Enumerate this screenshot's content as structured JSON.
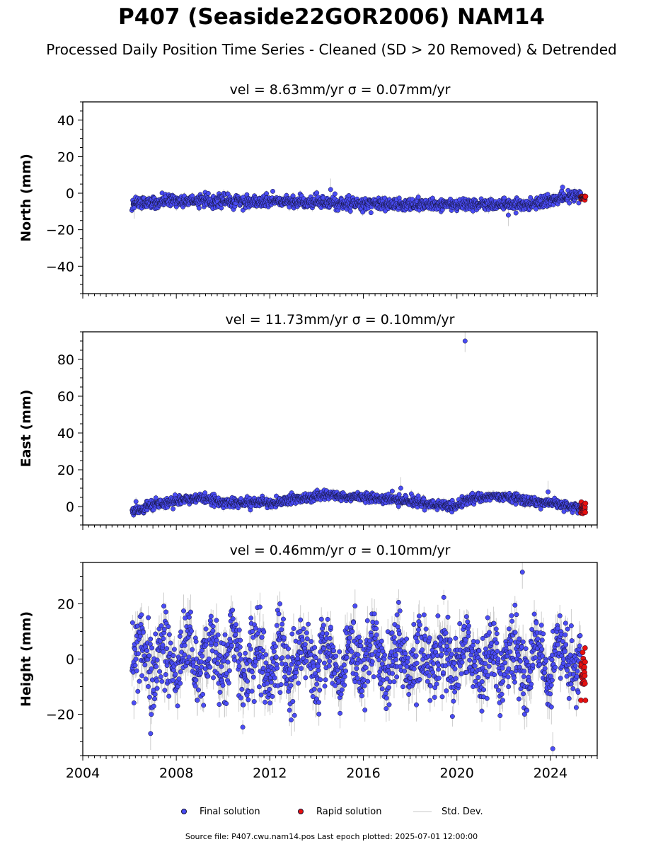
{
  "title": "P407 (Seaside22GOR2006) NAM14",
  "subtitle": "Processed Daily Position Time Series - Cleaned (SD > 20 Removed) & Detrended",
  "legend": {
    "final": "Final solution",
    "rapid": "Rapid solution",
    "std": "Std. Dev."
  },
  "footer": "Source file: P407.cwu.nam14.pos  Last epoch plotted: 2025-07-01 12:00:00",
  "colors": {
    "final": "#4a4cf5",
    "rapid": "#e8100e",
    "std": "#bdbdbd",
    "edge": "#111133"
  },
  "chart_data": [
    {
      "type": "scatter",
      "title": "vel = 8.63mm/yr   σ = 0.07mm/yr",
      "ylabel": "North (mm)",
      "xlim": [
        2004,
        2026
      ],
      "ylim": [
        -55,
        50
      ],
      "yticks": [
        -40,
        -20,
        0,
        20,
        40
      ],
      "series": [
        {
          "name": "Final solution",
          "x_range": [
            2006.1,
            2025.3
          ],
          "trend": [
            [
              2006.1,
              -5
            ],
            [
              2009,
              -4
            ],
            [
              2014.5,
              -5
            ],
            [
              2016,
              -6
            ],
            [
              2021,
              -6
            ],
            [
              2023,
              -6.5
            ],
            [
              2024.5,
              -3
            ],
            [
              2025.3,
              -1
            ]
          ],
          "scatter_sd": 1.6
        },
        {
          "name": "Rapid solution",
          "x_range": [
            2025.3,
            2025.5
          ],
          "trend": [
            [
              2025.3,
              -2.5
            ],
            [
              2025.5,
              -2.5
            ]
          ],
          "scatter_sd": 0.6
        }
      ],
      "outliers": [
        {
          "x": 2022.2,
          "y": -12
        },
        {
          "x": 2014.6,
          "y": 2
        },
        {
          "x": 2006.2,
          "y": -8
        }
      ]
    },
    {
      "type": "scatter",
      "title": "vel = 11.73mm/yr   σ = 0.10mm/yr",
      "ylabel": "East (mm)",
      "xlim": [
        2004,
        2026
      ],
      "ylim": [
        -10,
        95
      ],
      "yticks": [
        0,
        20,
        40,
        60,
        80
      ],
      "series": [
        {
          "name": "Final solution",
          "x_range": [
            2006.1,
            2025.3
          ],
          "trend": [
            [
              2006.1,
              -3
            ],
            [
              2007,
              1
            ],
            [
              2009,
              5
            ],
            [
              2010,
              2
            ],
            [
              2012,
              2
            ],
            [
              2013.5,
              5
            ],
            [
              2014.5,
              6
            ],
            [
              2016,
              5
            ],
            [
              2017.5,
              4
            ],
            [
              2019,
              1
            ],
            [
              2020,
              0
            ],
            [
              2020.5,
              4
            ],
            [
              2022,
              6
            ],
            [
              2023,
              3
            ],
            [
              2024,
              2
            ],
            [
              2025.3,
              -1
            ]
          ],
          "scatter_sd": 1.3
        },
        {
          "name": "Rapid solution",
          "x_range": [
            2025.3,
            2025.5
          ],
          "trend": [
            [
              2025.3,
              -1
            ],
            [
              2025.5,
              -1
            ]
          ],
          "scatter_sd": 1.5
        }
      ],
      "outliers": [
        {
          "x": 2020.35,
          "y": 90
        },
        {
          "x": 2023.9,
          "y": 8
        },
        {
          "x": 2017.6,
          "y": 10
        }
      ]
    },
    {
      "type": "scatter",
      "title": "vel = 0.46mm/yr   σ = 0.10mm/yr",
      "ylabel": "Height (mm)",
      "xlim": [
        2004,
        2026
      ],
      "ylim": [
        -35,
        35
      ],
      "yticks": [
        -20,
        0,
        20
      ],
      "xticks": [
        2004,
        2008,
        2012,
        2016,
        2020,
        2024
      ],
      "series": [
        {
          "name": "Final solution",
          "x_range": [
            2006.1,
            2025.3
          ],
          "trend": [
            [
              2006.1,
              0
            ],
            [
              2025.3,
              0
            ]
          ],
          "seasonal_amplitude": 6,
          "scatter_sd": 6.5
        },
        {
          "name": "Rapid solution",
          "x_range": [
            2025.3,
            2025.5
          ],
          "trend": [
            [
              2025.3,
              -5
            ],
            [
              2025.5,
              -5
            ]
          ],
          "scatter_sd": 5
        }
      ],
      "outliers": [
        {
          "x": 2022.8,
          "y": 31.5
        },
        {
          "x": 2024.1,
          "y": -32.5
        },
        {
          "x": 2006.9,
          "y": -27
        }
      ]
    }
  ]
}
